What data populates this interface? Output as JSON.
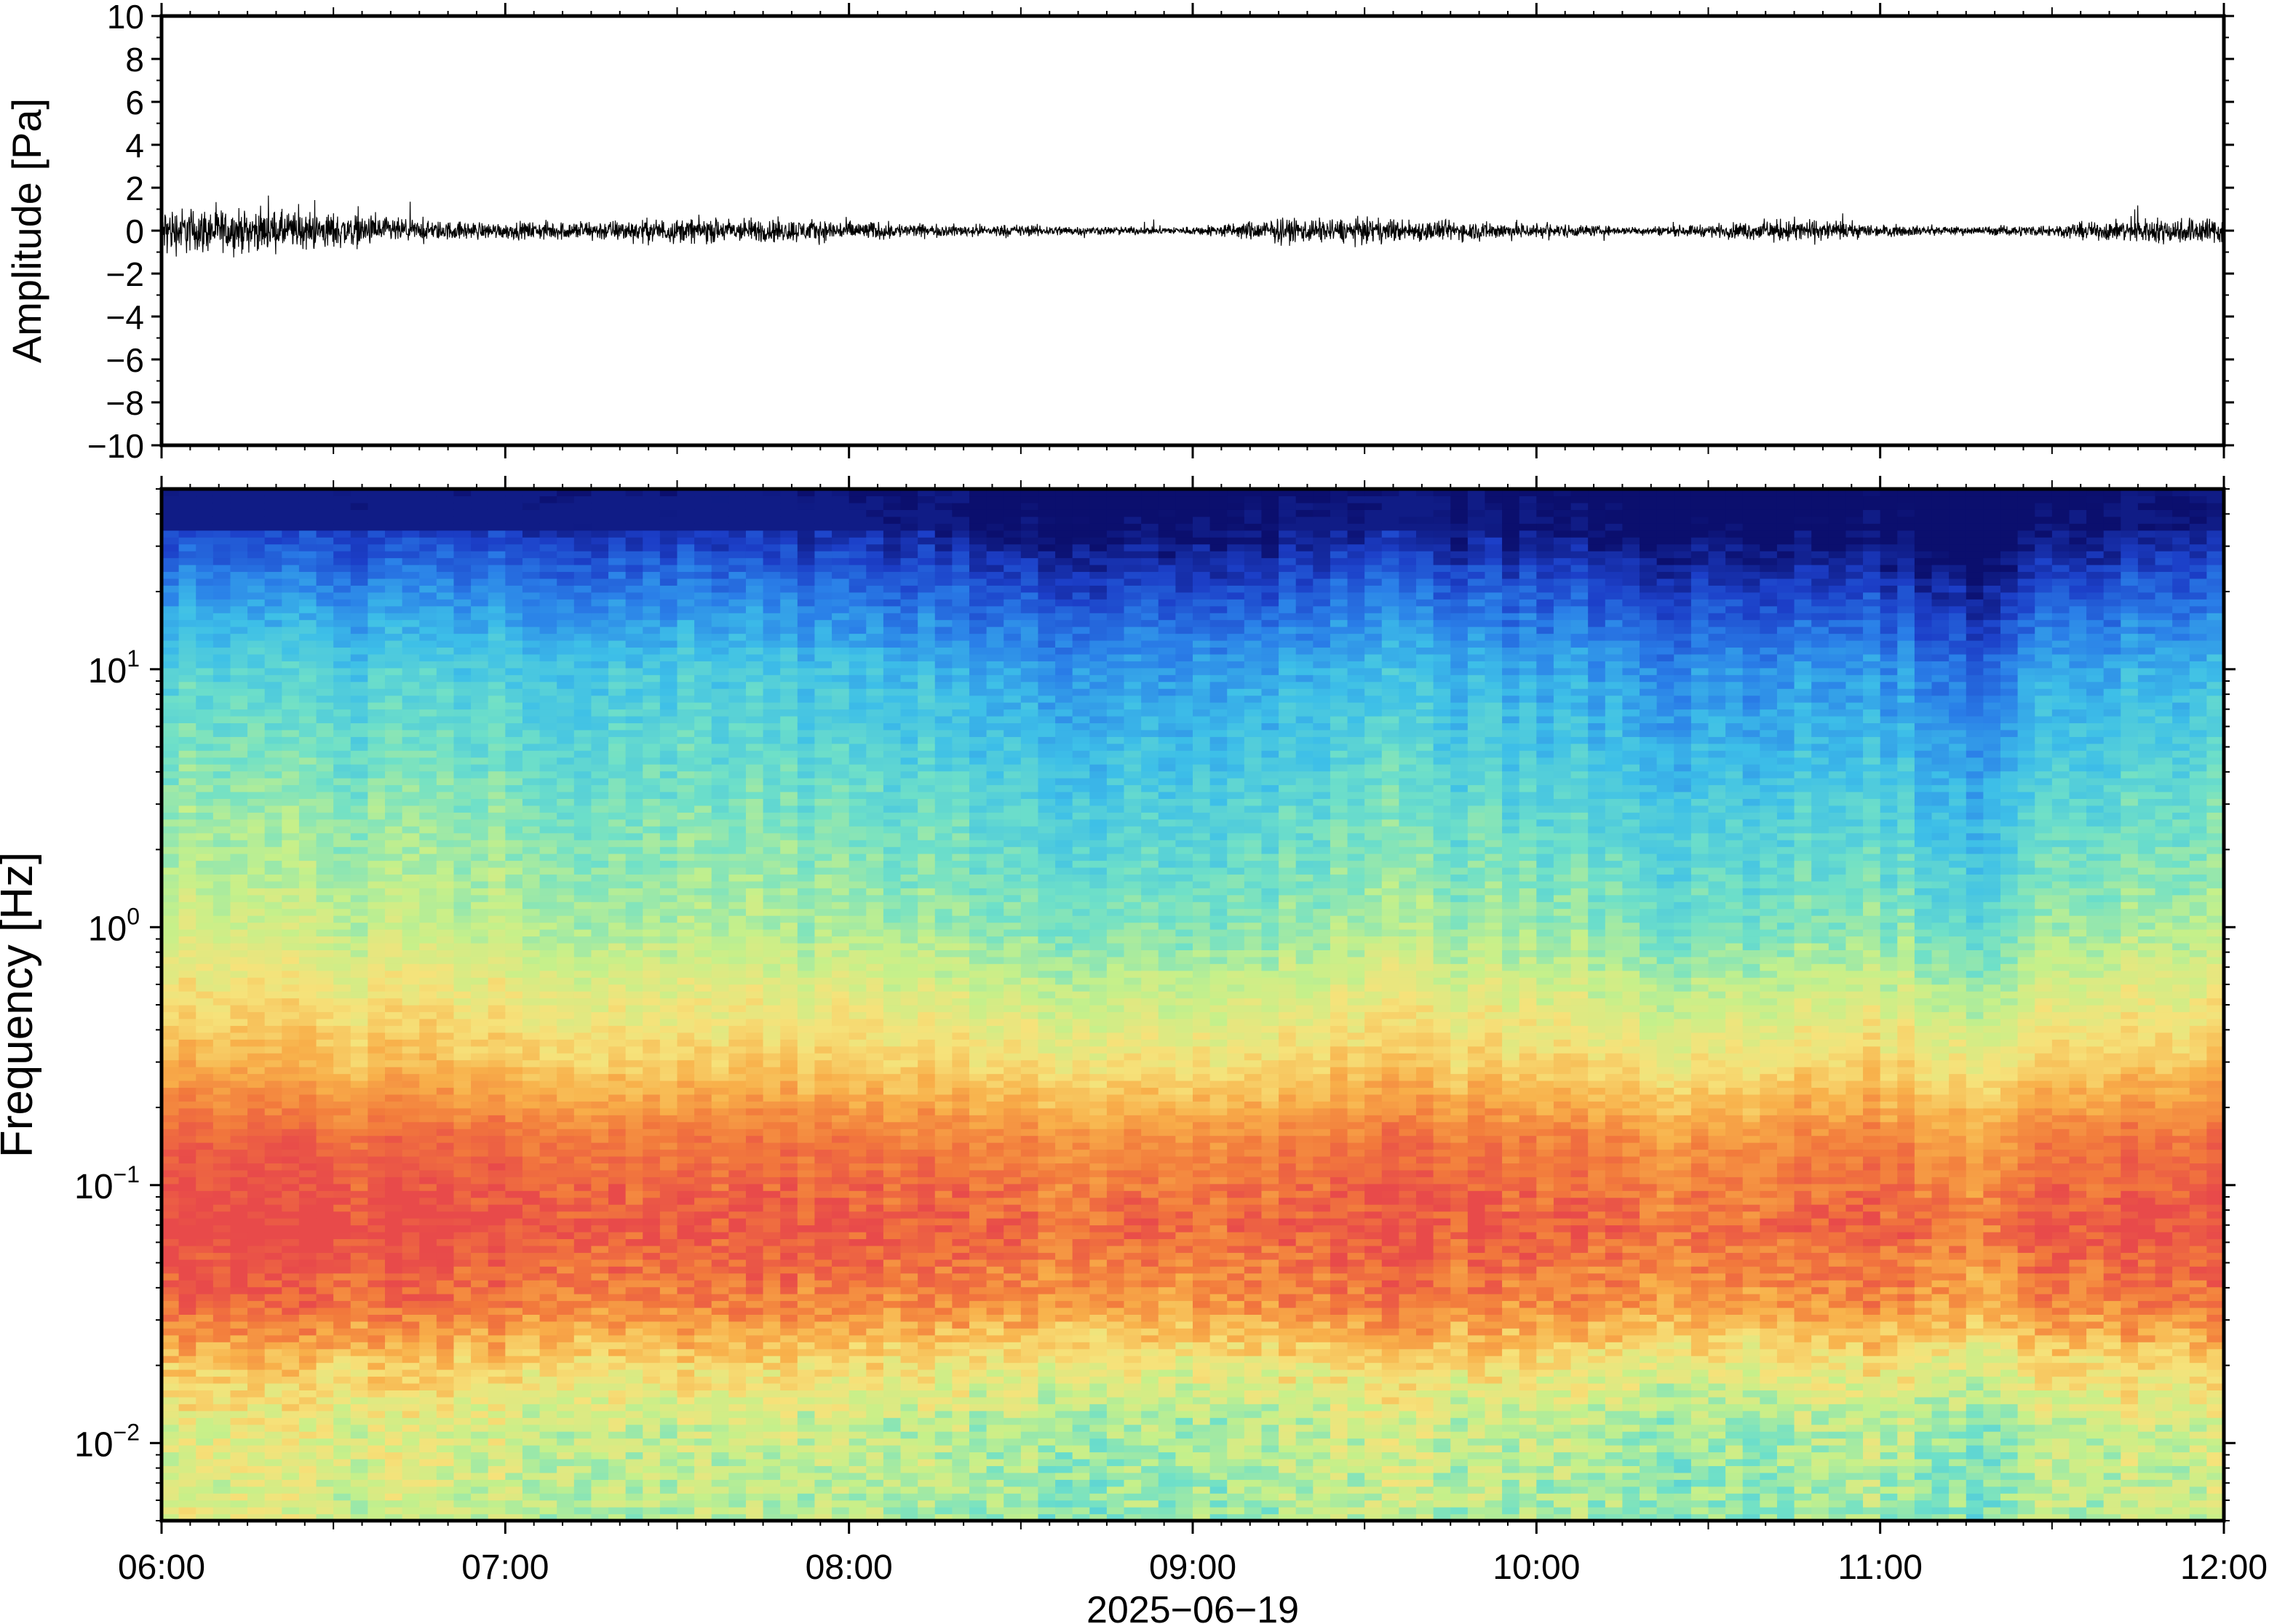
{
  "chart_data": [
    {
      "type": "line",
      "panel": "waveform",
      "ylabel": "Amplitude [Pa]",
      "ylim": [
        -10,
        10
      ],
      "yticks": [
        10,
        8,
        6,
        4,
        2,
        0,
        -2,
        -4,
        -6,
        -8,
        -10
      ],
      "ytick_labels": [
        "10",
        "8",
        "6",
        "4",
        "2",
        "0",
        "−2",
        "−4",
        "−6",
        "−8",
        "−10"
      ],
      "xlim": [
        "06:00",
        "12:00"
      ],
      "grid": false,
      "series": [
        {
          "color": "#000000",
          "x_hours": [
            6.0,
            6.25,
            6.5,
            6.75,
            7.0,
            7.25,
            7.5,
            7.75,
            8.0,
            8.25,
            8.5,
            8.75,
            9.0,
            9.25,
            9.5,
            9.75,
            10.0,
            10.25,
            10.5,
            10.75,
            11.0,
            11.25,
            11.5,
            11.75,
            12.0
          ],
          "envelope_pa": [
            1.2,
            1.0,
            0.9,
            0.5,
            0.4,
            0.5,
            0.6,
            0.6,
            0.5,
            0.3,
            0.3,
            0.2,
            0.2,
            0.6,
            0.6,
            0.5,
            0.4,
            0.2,
            0.3,
            0.6,
            0.3,
            0.2,
            0.3,
            0.6,
            0.7
          ]
        }
      ]
    },
    {
      "type": "heatmap",
      "panel": "spectrogram",
      "ylabel": "Frequency [Hz]",
      "xlabel": "2025−06−19",
      "yscale": "log",
      "ylim": [
        0.005,
        50
      ],
      "yticks": [
        0.01,
        0.1,
        1,
        10
      ],
      "ytick_labels": [
        {
          "base": "10",
          "exp": "−2"
        },
        {
          "base": "10",
          "exp": "−1"
        },
        {
          "base": "10",
          "exp": "0"
        },
        {
          "base": "10",
          "exp": "1"
        }
      ],
      "x_ticks": [
        "06:00",
        "07:00",
        "08:00",
        "09:00",
        "10:00",
        "11:00",
        "12:00"
      ],
      "xlim": [
        "06:00",
        "12:00"
      ],
      "colormap": [
        "#0b0f6e",
        "#1c3fc8",
        "#2a7fe8",
        "#3dbfe8",
        "#6fe0c8",
        "#c6f08a",
        "#f6e27a",
        "#f8b04a",
        "#f27a3c",
        "#e84a4a"
      ],
      "frequency_profile": [
        {
          "hz": 0.005,
          "level": 0.52
        },
        {
          "hz": 0.012,
          "level": 0.55
        },
        {
          "hz": 0.02,
          "level": 0.66
        },
        {
          "hz": 0.035,
          "level": 0.85
        },
        {
          "hz": 0.07,
          "level": 0.95
        },
        {
          "hz": 0.15,
          "level": 0.87
        },
        {
          "hz": 0.3,
          "level": 0.69
        },
        {
          "hz": 1.0,
          "level": 0.5
        },
        {
          "hz": 3.0,
          "level": 0.42
        },
        {
          "hz": 10.0,
          "level": 0.32
        },
        {
          "hz": 20.0,
          "level": 0.18
        },
        {
          "hz": 35.0,
          "level": 0.04
        },
        {
          "hz": 50.0,
          "level": 0.0
        }
      ],
      "activity": [
        {
          "time": "06:00",
          "hf": 0.07,
          "lf": 0.07
        },
        {
          "time": "06:30",
          "hf": 0.06,
          "lf": 0.06
        },
        {
          "time": "07:00",
          "hf": 0.05,
          "lf": 0.04
        },
        {
          "time": "07:30",
          "hf": 0.05,
          "lf": 0.02
        },
        {
          "time": "08:00",
          "hf": 0.02,
          "lf": 0.02
        },
        {
          "time": "08:30",
          "hf": -0.04,
          "lf": -0.02
        },
        {
          "time": "09:00",
          "hf": -0.06,
          "lf": -0.04
        },
        {
          "time": "09:30",
          "hf": 0.02,
          "lf": 0.04
        },
        {
          "time": "10:00",
          "hf": -0.03,
          "lf": 0.0
        },
        {
          "time": "10:30",
          "hf": -0.08,
          "lf": -0.05
        },
        {
          "time": "11:00",
          "hf": -0.05,
          "lf": 0.01
        },
        {
          "time": "11:15",
          "hf": -0.13,
          "lf": -0.06
        },
        {
          "time": "11:30",
          "hf": -0.02,
          "lf": 0.03
        },
        {
          "time": "12:00",
          "hf": 0.01,
          "lf": 0.04
        }
      ]
    }
  ]
}
